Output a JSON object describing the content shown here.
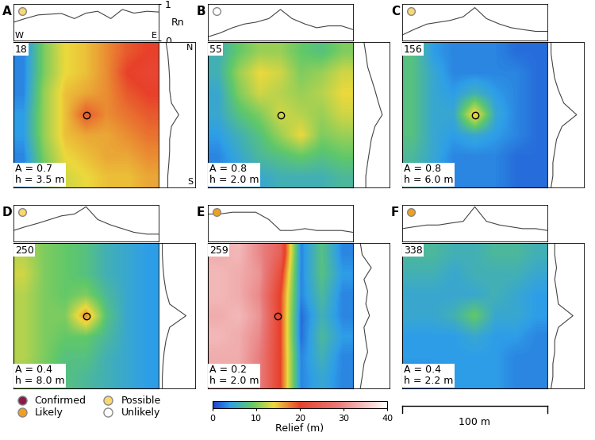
{
  "chart_data": {
    "type": "relief_maps",
    "xlim": [
      0,
      100
    ],
    "ylim": [
      0,
      100
    ],
    "profile_ylim": [
      0,
      1
    ],
    "profile_yticks": [
      0,
      1
    ],
    "profile_label": "Rn",
    "directions": {
      "west": "W",
      "east": "E",
      "north": "N",
      "south": "S"
    },
    "profile_x": [
      0,
      8,
      17,
      25,
      33,
      42,
      50,
      58,
      67,
      75,
      83,
      92,
      100
    ],
    "colorbar": {
      "label": "Relief (m)",
      "range": [
        0,
        40
      ],
      "ticks": [
        0,
        10,
        20,
        30,
        40
      ]
    },
    "scale_bar": {
      "length": 100,
      "label": "100 m"
    },
    "status_legend": [
      {
        "name": "Confirmed",
        "color": "#8b1a4a"
      },
      {
        "name": "Likely",
        "color": "#f0a020"
      },
      {
        "name": "Possible",
        "color": "#f8d870"
      },
      {
        "name": "Unlikely",
        "color": "#ffffff"
      }
    ],
    "panels": [
      {
        "letter": "A",
        "number": "18",
        "status": "Possible",
        "area_label": "A = 0.7",
        "height_label": "h = 3.5 m",
        "marker": [
          50,
          50
        ],
        "relief": [
          [
            3,
            10,
            14,
            15,
            17,
            19,
            20
          ],
          [
            3,
            10,
            14,
            15,
            17,
            20,
            21
          ],
          [
            3,
            11,
            15,
            16,
            17,
            19,
            20
          ],
          [
            4,
            11,
            15,
            19,
            17,
            18,
            19
          ],
          [
            4,
            11,
            15,
            16,
            16,
            17,
            18
          ],
          [
            3,
            10,
            14,
            15,
            16,
            16,
            17
          ],
          [
            3,
            9,
            13,
            14,
            15,
            15,
            16
          ]
        ],
        "profile_we": [
          0.5,
          0.6,
          0.7,
          0.72,
          0.74,
          0.6,
          0.75,
          0.8,
          0.6,
          0.85,
          0.75,
          0.8,
          0.78
        ],
        "profile_ns": [
          0.2,
          0.25,
          0.28,
          0.3,
          0.3,
          0.35,
          0.55,
          0.35,
          0.3,
          0.3,
          0.28,
          0.25,
          0.25
        ]
      },
      {
        "letter": "B",
        "number": "55",
        "status": "Unlikely",
        "area_label": "A = 0.8",
        "height_label": "h = 2.0 m",
        "marker": [
          50,
          50
        ],
        "relief": [
          [
            6,
            9,
            11,
            11,
            9,
            8,
            10
          ],
          [
            6,
            11,
            14,
            13,
            10,
            11,
            13
          ],
          [
            5,
            10,
            13,
            12,
            11,
            12,
            14
          ],
          [
            5,
            8,
            10,
            13,
            12,
            11,
            13
          ],
          [
            4,
            6,
            8,
            11,
            14,
            10,
            11
          ],
          [
            3,
            5,
            7,
            8,
            9,
            8,
            9
          ],
          [
            3,
            4,
            5,
            6,
            6,
            6,
            7
          ]
        ],
        "profile_we": [
          0.1,
          0.2,
          0.35,
          0.45,
          0.5,
          0.6,
          0.85,
          0.6,
          0.45,
          0.35,
          0.4,
          0.4,
          0.3
        ],
        "profile_ns": [
          0.3,
          0.35,
          0.4,
          0.5,
          0.6,
          0.7,
          0.8,
          0.6,
          0.5,
          0.45,
          0.4,
          0.35,
          0.35
        ]
      },
      {
        "letter": "C",
        "number": "156",
        "status": "Possible",
        "area_label": "A = 0.8",
        "height_label": "h = 6.0 m",
        "marker": [
          50,
          50
        ],
        "relief": [
          [
            8,
            4,
            3,
            3,
            3,
            2,
            2
          ],
          [
            8,
            5,
            3,
            3,
            3,
            3,
            2
          ],
          [
            8,
            5,
            4,
            6,
            4,
            3,
            2
          ],
          [
            8,
            5,
            5,
            15,
            5,
            3,
            2
          ],
          [
            8,
            5,
            4,
            5,
            4,
            3,
            2
          ],
          [
            7,
            5,
            3,
            3,
            3,
            2,
            2
          ],
          [
            7,
            4,
            3,
            3,
            3,
            2,
            2
          ]
        ],
        "profile_we": [
          0.15,
          0.3,
          0.45,
          0.5,
          0.55,
          0.65,
          0.9,
          0.6,
          0.45,
          0.35,
          0.3,
          0.25,
          0.25
        ],
        "profile_ns": [
          0.1,
          0.1,
          0.15,
          0.2,
          0.3,
          0.45,
          0.8,
          0.4,
          0.25,
          0.2,
          0.15,
          0.15,
          0.1
        ]
      },
      {
        "letter": "D",
        "number": "250",
        "status": "Possible",
        "area_label": "A = 0.4",
        "height_label": "h = 8.0 m",
        "marker": [
          50,
          50
        ],
        "relief": [
          [
            12,
            10,
            9,
            8,
            6,
            5,
            4
          ],
          [
            13,
            10,
            9,
            8,
            6,
            5,
            4
          ],
          [
            12,
            10,
            9,
            10,
            7,
            5,
            4
          ],
          [
            12,
            10,
            10,
            17,
            8,
            5,
            4
          ],
          [
            12,
            10,
            9,
            9,
            7,
            5,
            4
          ],
          [
            12,
            10,
            8,
            8,
            6,
            5,
            4
          ],
          [
            11,
            9,
            8,
            7,
            6,
            5,
            4
          ]
        ],
        "profile_we": [
          0.3,
          0.4,
          0.5,
          0.6,
          0.7,
          0.75,
          0.95,
          0.6,
          0.45,
          0.35,
          0.25,
          0.2,
          0.2
        ],
        "profile_ns": [
          0.1,
          0.1,
          0.12,
          0.15,
          0.2,
          0.3,
          0.75,
          0.3,
          0.2,
          0.15,
          0.12,
          0.1,
          0.1
        ]
      },
      {
        "letter": "E",
        "number": "259",
        "status": "Likely",
        "area_label": "A = 0.2",
        "height_label": "h = 2.0 m",
        "marker": [
          48,
          50
        ],
        "relief": [
          [
            33,
            34,
            30,
            25,
            3,
            8,
            3
          ],
          [
            34,
            33,
            31,
            22,
            3,
            8,
            4
          ],
          [
            34,
            33,
            30,
            20,
            3,
            7,
            3
          ],
          [
            33,
            34,
            31,
            20,
            2,
            6,
            3
          ],
          [
            34,
            33,
            30,
            20,
            2,
            7,
            4
          ],
          [
            33,
            33,
            29,
            20,
            3,
            6,
            3
          ],
          [
            33,
            32,
            29,
            20,
            3,
            5,
            3
          ]
        ],
        "profile_we": [
          0.75,
          0.75,
          0.8,
          0.8,
          0.8,
          0.6,
          0.3,
          0.3,
          0.35,
          0.3,
          0.3,
          0.3,
          0.25
        ],
        "profile_ns": [
          0.2,
          0.25,
          0.5,
          0.3,
          0.4,
          0.35,
          0.45,
          0.3,
          0.35,
          0.4,
          0.3,
          0.25,
          0.2
        ]
      },
      {
        "letter": "F",
        "number": "338",
        "status": "Likely",
        "area_label": "A = 0.4",
        "height_label": "h = 2.2 m",
        "marker": null,
        "relief": [
          [
            7,
            7,
            6,
            6,
            7,
            7,
            6
          ],
          [
            6,
            6,
            5,
            6,
            6,
            6,
            5
          ],
          [
            5,
            5,
            5,
            5,
            6,
            5,
            4
          ],
          [
            5,
            5,
            6,
            9,
            5,
            5,
            4
          ],
          [
            4,
            4,
            4,
            5,
            4,
            4,
            3
          ],
          [
            4,
            4,
            4,
            4,
            4,
            3,
            3
          ],
          [
            3,
            3,
            4,
            4,
            4,
            3,
            3
          ]
        ],
        "profile_we": [
          0.35,
          0.4,
          0.45,
          0.45,
          0.5,
          0.55,
          0.95,
          0.55,
          0.45,
          0.4,
          0.35,
          0.35,
          0.3
        ],
        "profile_ns": [
          0.2,
          0.2,
          0.25,
          0.2,
          0.25,
          0.3,
          0.7,
          0.3,
          0.2,
          0.2,
          0.15,
          0.15,
          0.1
        ]
      }
    ]
  }
}
